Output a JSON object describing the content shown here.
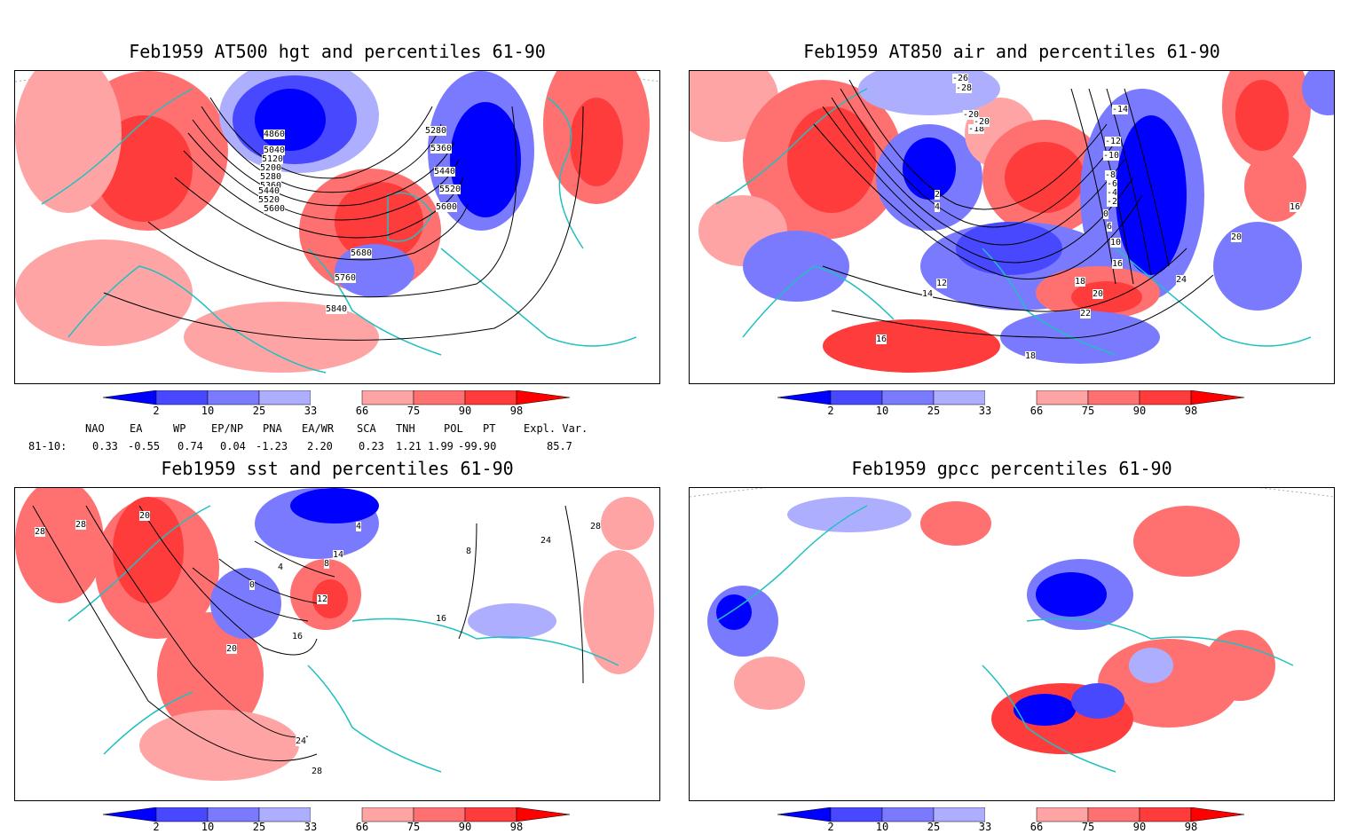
{
  "panels": {
    "hgt500": {
      "title": "Feb1959 AT500 hgt and percentiles 61-90",
      "labels": [
        "4860",
        "5040",
        "5120",
        "5200",
        "5280",
        "5360",
        "5440",
        "5520",
        "5600",
        "5280",
        "5360",
        "5440",
        "5520",
        "5600",
        "5680",
        "5760",
        "5840"
      ]
    },
    "air850": {
      "title": "Feb1959 AT850 air and percentiles 61-90",
      "labels": [
        "-26",
        "-28",
        "-20",
        "-18",
        "-20",
        "-14",
        "-12",
        "-10",
        "-8",
        "-6",
        "-4",
        "-2",
        "0",
        "2",
        "4",
        "6",
        "10",
        "12",
        "14",
        "16",
        "18",
        "20",
        "22",
        "24",
        "16",
        "18",
        "20",
        "16"
      ]
    },
    "sst": {
      "title": "Feb1959 sst and percentiles 61-90",
      "labels": [
        "28",
        "28",
        "20",
        "0",
        "4",
        "8",
        "12",
        "14",
        "16",
        "20",
        "24",
        "28",
        "24",
        "28",
        "16",
        "4",
        "8"
      ]
    },
    "gpcc": {
      "title": "Feb1959 gpcc percentiles 61-90"
    }
  },
  "colorbar": {
    "ticks": [
      "2",
      "10",
      "25",
      "33",
      "66",
      "75",
      "90",
      "98"
    ],
    "colors": {
      "p2": "#0000ff",
      "p10": "#4848ff",
      "p25": "#7a7aff",
      "p33": "#aeaeff",
      "mid": "#ffffff",
      "p66": "#ffa4a4",
      "p75": "#ff7070",
      "p90": "#ff3c3c",
      "p98": "#ff0000"
    }
  },
  "indices": {
    "headers": [
      "NAO",
      "EA",
      "WP",
      "EP/NP",
      "PNA",
      "EA/WR",
      "SCA",
      "TNH",
      "POL",
      "PT",
      "Expl. Var."
    ],
    "row_label": "81-10:",
    "values": [
      "0.33",
      "-0.55",
      "0.74",
      "0.04",
      "-1.23",
      "2.20",
      "0.23",
      "1.21",
      "1.99",
      "-99.90",
      "85.7"
    ]
  },
  "colors": {
    "coast": "#20c0c0",
    "contour": "#000000"
  }
}
